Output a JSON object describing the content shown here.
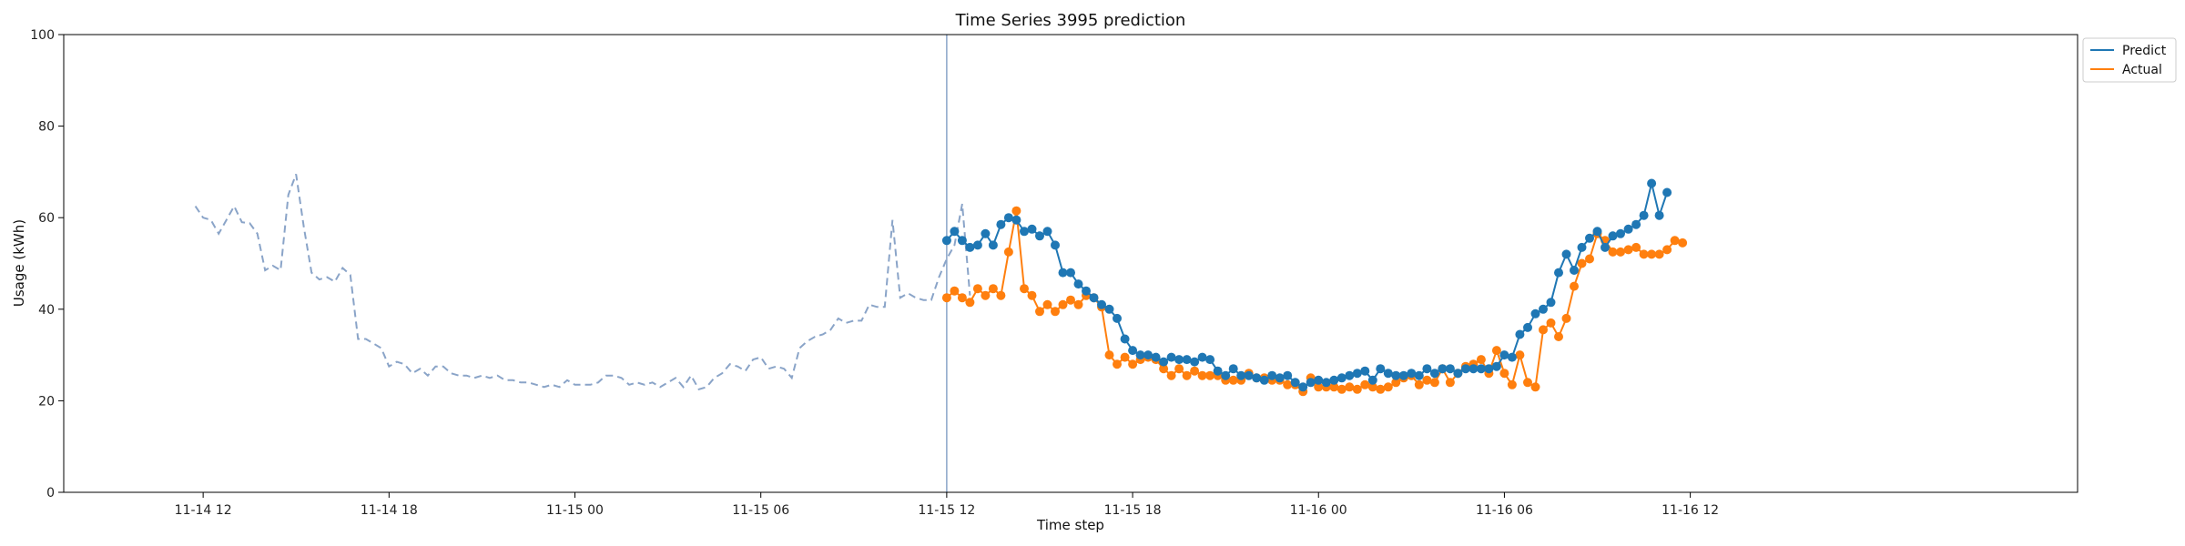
{
  "chart_data": {
    "type": "line",
    "title": "Time Series 3995 prediction",
    "xlabel": "Time step",
    "ylabel": "Usage (kWh)",
    "ylim": [
      0,
      100
    ],
    "yticks": [
      0,
      20,
      40,
      60,
      80,
      100
    ],
    "xlim_hours": [
      -4.5,
      60.5
    ],
    "xticks": [
      {
        "h": 0,
        "label": "11-14 12"
      },
      {
        "h": 6,
        "label": "11-14 18"
      },
      {
        "h": 12,
        "label": "11-15 00"
      },
      {
        "h": 18,
        "label": "11-15 06"
      },
      {
        "h": 24,
        "label": "11-15 12"
      },
      {
        "h": 30,
        "label": "11-15 18"
      },
      {
        "h": 36,
        "label": "11-16 00"
      },
      {
        "h": 42,
        "label": "11-16 06"
      },
      {
        "h": 48,
        "label": "11-16 12"
      }
    ],
    "step_hours": 0.25,
    "prediction_start": "11-15 12",
    "legend": {
      "position": "top-right",
      "entries": [
        "Predict",
        "Actual"
      ]
    },
    "colors": {
      "history": "#8aa4c8",
      "predict": "#1f77b4",
      "actual": "#ff7f0e",
      "vline": "#8aa4c8"
    },
    "history": {
      "start_h": -0.25,
      "values": [
        62.5,
        60,
        59.5,
        56.5,
        59.5,
        62.5,
        59,
        58.8,
        56.5,
        48.5,
        49.5,
        48.5,
        65,
        69.5,
        58,
        48,
        46.5,
        47,
        46,
        49,
        47.5,
        33.5,
        33.5,
        32.5,
        31.5,
        27.5,
        28.5,
        28,
        26,
        27,
        25.5,
        27.5,
        27.5,
        26,
        25.5,
        25.5,
        25,
        25.5,
        25,
        25.5,
        24.5,
        24.5,
        24,
        24,
        23.5,
        23,
        23.5,
        23,
        24.5,
        23.5,
        23.5,
        23.5,
        24,
        25.5,
        25.5,
        25,
        23.5,
        24,
        23.5,
        24,
        23,
        24,
        25,
        23,
        25.5,
        22.5,
        23,
        25,
        26,
        28,
        27.5,
        26.5,
        29,
        29.5,
        27,
        27.5,
        27,
        25,
        31.5,
        33,
        34,
        34.5,
        35.5,
        38,
        37,
        37.5,
        37.5,
        41,
        40.5,
        40.5,
        59.5,
        42.5,
        43.5,
        42.5,
        42,
        42,
        47,
        51,
        54,
        63,
        43
      ]
    },
    "series": [
      {
        "name": "Predict",
        "start_h": 24,
        "values": [
          55,
          57,
          55,
          53.5,
          54,
          56.5,
          54,
          58.5,
          60,
          59.5,
          57,
          57.5,
          56,
          57,
          54,
          48,
          48,
          45.5,
          44,
          42.5,
          41,
          40,
          38,
          33.5,
          31,
          30,
          30,
          29.5,
          28.5,
          29.5,
          29,
          29,
          28.5,
          29.5,
          29,
          26.5,
          25.5,
          27,
          25.5,
          25.5,
          25,
          24.5,
          25.5,
          25,
          25.5,
          24,
          23,
          24,
          24.5,
          24,
          24.5,
          25,
          25.5,
          26,
          26.5,
          24.5,
          27,
          26,
          25.5,
          25.5,
          26,
          25.5,
          27,
          26,
          27,
          27,
          26,
          27,
          27,
          27,
          27,
          27.5,
          30,
          29.5,
          34.5,
          36,
          39,
          40,
          41.5,
          48,
          52,
          48.5,
          53.5,
          55.5,
          57,
          53.5,
          56,
          56.5,
          57.5,
          58.5,
          60.5,
          67.5,
          60.5,
          65.5
        ]
      },
      {
        "name": "Actual",
        "start_h": 24,
        "values": [
          42.5,
          44,
          42.5,
          41.5,
          44.5,
          43,
          44.5,
          43,
          52.5,
          61.5,
          44.5,
          43,
          39.5,
          41,
          39.5,
          41,
          42,
          41,
          43,
          42.5,
          40.5,
          30,
          28,
          29.5,
          28,
          29,
          29.5,
          29,
          27,
          25.5,
          27,
          25.5,
          26.5,
          25.5,
          25.5,
          25.5,
          24.5,
          24.5,
          24.5,
          26,
          25,
          25,
          24.5,
          24.5,
          23.5,
          23.5,
          22,
          25,
          23,
          23,
          23,
          22.5,
          23,
          22.5,
          23.5,
          23,
          22.5,
          23,
          24,
          25,
          25.5,
          23.5,
          24.5,
          24,
          27,
          24,
          26,
          27.5,
          28,
          29,
          26,
          31,
          26,
          23.5,
          30,
          24,
          23,
          35.5,
          37,
          34,
          38,
          45,
          50,
          51,
          56.5,
          55,
          52.5,
          52.5,
          53,
          53.5,
          52,
          52,
          52,
          53,
          55,
          54.5
        ]
      }
    ]
  }
}
